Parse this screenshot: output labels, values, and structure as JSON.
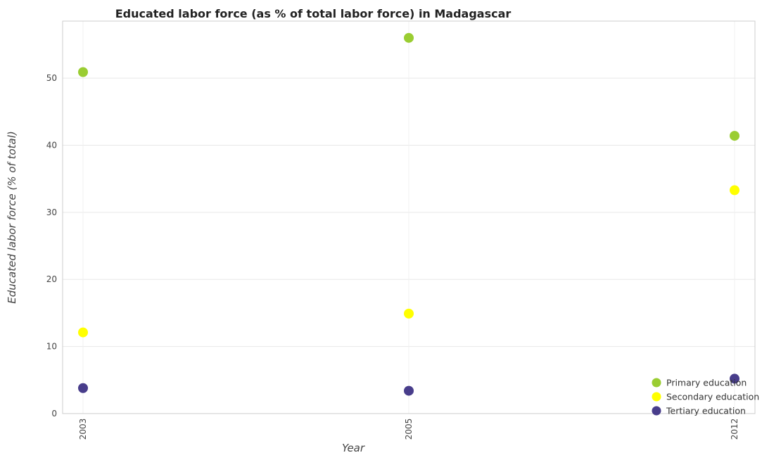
{
  "chart_data": {
    "type": "scatter",
    "title": "Educated labor force (as % of total labor force) in Madagascar",
    "xlabel": "Year",
    "ylabel": "Educated labor force (% of total)",
    "categories": [
      "2003",
      "2005",
      "2012"
    ],
    "y_ticks": [
      "0",
      "10",
      "20",
      "30",
      "40",
      "50"
    ],
    "ylim": [
      0,
      58.5
    ],
    "grid": true,
    "legend_position": "bottom-right",
    "series": [
      {
        "name": "Primary education",
        "color": "#9acd32",
        "values": [
          50.9,
          56.0,
          41.4
        ]
      },
      {
        "name": "Secondary education",
        "color": "#ffff00",
        "values": [
          12.1,
          14.9,
          33.3
        ]
      },
      {
        "name": "Tertiary education",
        "color": "#483d8b",
        "values": [
          3.8,
          3.4,
          5.2
        ]
      }
    ]
  }
}
